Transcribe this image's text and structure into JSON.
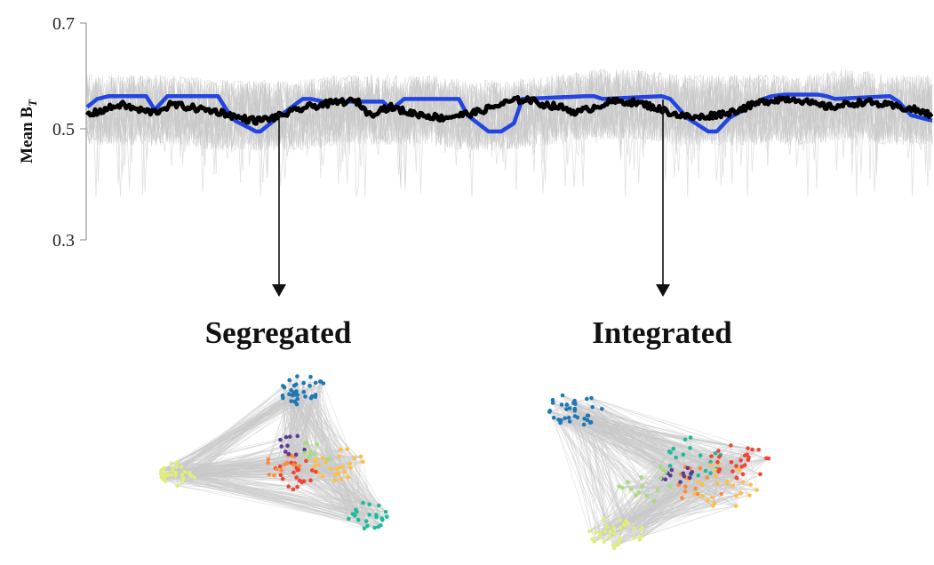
{
  "chart_data": {
    "type": "line",
    "ylabel": "Mean B",
    "ylabel_subscript": "T",
    "ylim": [
      0.3,
      0.7
    ],
    "yticks": [
      "0.7",
      "0.5",
      "0.3"
    ],
    "xlabel": "",
    "grid": false,
    "series": [
      {
        "role": "individual-traces",
        "color": "#c8c8c8",
        "band": [
          0.43,
          0.65
        ],
        "x": [
          0,
          0.05,
          0.1,
          0.15,
          0.2,
          0.25,
          0.3,
          0.35,
          0.4,
          0.45,
          0.5,
          0.55,
          0.6,
          0.65,
          0.7,
          0.75,
          0.8,
          0.85,
          0.9,
          0.95,
          1.0
        ],
        "values": [
          0.54,
          0.54,
          0.54,
          0.53,
          0.53,
          0.53,
          0.54,
          0.54,
          0.54,
          0.53,
          0.53,
          0.54,
          0.55,
          0.55,
          0.54,
          0.54,
          0.54,
          0.54,
          0.55,
          0.54,
          0.54
        ]
      },
      {
        "role": "task-block-regressor",
        "color": "#2244e0",
        "x": [
          0,
          0.012,
          0.025,
          0.07,
          0.08,
          0.095,
          0.155,
          0.165,
          0.175,
          0.2,
          0.205,
          0.225,
          0.255,
          0.265,
          0.28,
          0.35,
          0.36,
          0.375,
          0.44,
          0.45,
          0.475,
          0.49,
          0.505,
          0.515,
          0.59,
          0.6,
          0.61,
          0.68,
          0.69,
          0.71,
          0.735,
          0.745,
          0.76,
          0.8,
          0.81,
          0.825,
          0.865,
          0.875,
          0.885,
          0.95,
          0.96,
          0.975,
          1.0
        ],
        "values": [
          0.545,
          0.56,
          0.565,
          0.565,
          0.54,
          0.565,
          0.565,
          0.54,
          0.52,
          0.5,
          0.5,
          0.525,
          0.56,
          0.56,
          0.555,
          0.555,
          0.54,
          0.56,
          0.56,
          0.53,
          0.5,
          0.5,
          0.515,
          0.56,
          0.565,
          0.565,
          0.56,
          0.565,
          0.56,
          0.525,
          0.5,
          0.5,
          0.525,
          0.56,
          0.565,
          0.568,
          0.568,
          0.565,
          0.56,
          0.565,
          0.555,
          0.53,
          0.52
        ]
      },
      {
        "role": "mean",
        "color": "#000000",
        "x": [
          0,
          0.02,
          0.04,
          0.06,
          0.08,
          0.1,
          0.12,
          0.14,
          0.16,
          0.18,
          0.2,
          0.22,
          0.24,
          0.26,
          0.28,
          0.3,
          0.32,
          0.335,
          0.345,
          0.36,
          0.38,
          0.4,
          0.42,
          0.44,
          0.46,
          0.48,
          0.5,
          0.52,
          0.54,
          0.56,
          0.58,
          0.6,
          0.62,
          0.64,
          0.66,
          0.68,
          0.7,
          0.72,
          0.74,
          0.76,
          0.78,
          0.8,
          0.82,
          0.84,
          0.86,
          0.88,
          0.9,
          0.92,
          0.94,
          0.96,
          0.98,
          1.0
        ],
        "values": [
          0.53,
          0.54,
          0.55,
          0.54,
          0.535,
          0.55,
          0.545,
          0.54,
          0.535,
          0.525,
          0.52,
          0.525,
          0.535,
          0.545,
          0.55,
          0.555,
          0.555,
          0.53,
          0.54,
          0.545,
          0.535,
          0.53,
          0.525,
          0.53,
          0.535,
          0.545,
          0.555,
          0.56,
          0.55,
          0.545,
          0.535,
          0.545,
          0.555,
          0.555,
          0.55,
          0.54,
          0.53,
          0.525,
          0.53,
          0.535,
          0.545,
          0.555,
          0.56,
          0.56,
          0.55,
          0.545,
          0.55,
          0.555,
          0.55,
          0.545,
          0.54,
          0.53
        ]
      }
    ],
    "annotations": [
      {
        "label": "Segregated",
        "at_x": 0.23
      },
      {
        "label": "Integrated",
        "at_x": 0.68
      }
    ]
  },
  "networks": [
    {
      "title": "Segregated",
      "clusters": [
        {
          "color": "#1f77b4",
          "count": 34,
          "center": [
            0.58,
            0.16
          ],
          "spread": 0.09
        },
        {
          "color": "#e2ec7a",
          "count": 30,
          "center": [
            0.1,
            0.6
          ],
          "spread": 0.07
        },
        {
          "color": "#1abc9c",
          "count": 22,
          "center": [
            0.82,
            0.82
          ],
          "spread": 0.08
        },
        {
          "color": "#ffbf47",
          "count": 26,
          "center": [
            0.72,
            0.55
          ],
          "spread": 0.1
        },
        {
          "color": "#f04434",
          "count": 22,
          "center": [
            0.55,
            0.6
          ],
          "spread": 0.09
        },
        {
          "color": "#ff8a3a",
          "count": 14,
          "center": [
            0.5,
            0.55
          ],
          "spread": 0.08
        },
        {
          "color": "#5b3b96",
          "count": 10,
          "center": [
            0.54,
            0.45
          ],
          "spread": 0.06
        },
        {
          "color": "#a8dc7e",
          "count": 10,
          "center": [
            0.62,
            0.5
          ],
          "spread": 0.08
        }
      ]
    },
    {
      "title": "Integrated",
      "clusters": [
        {
          "color": "#1f77b4",
          "count": 34,
          "center": [
            0.15,
            0.2
          ],
          "spread": 0.1
        },
        {
          "color": "#e2ec7a",
          "count": 34,
          "center": [
            0.3,
            0.85
          ],
          "spread": 0.1
        },
        {
          "color": "#1abc9c",
          "count": 18,
          "center": [
            0.6,
            0.45
          ],
          "spread": 0.12
        },
        {
          "color": "#ffbf47",
          "count": 26,
          "center": [
            0.7,
            0.6
          ],
          "spread": 0.14
        },
        {
          "color": "#f04434",
          "count": 26,
          "center": [
            0.75,
            0.48
          ],
          "spread": 0.11
        },
        {
          "color": "#ff8a3a",
          "count": 14,
          "center": [
            0.6,
            0.58
          ],
          "spread": 0.12
        },
        {
          "color": "#5b3b96",
          "count": 12,
          "center": [
            0.52,
            0.55
          ],
          "spread": 0.07
        },
        {
          "color": "#a8dc7e",
          "count": 16,
          "center": [
            0.42,
            0.6
          ],
          "spread": 0.12
        }
      ]
    }
  ]
}
